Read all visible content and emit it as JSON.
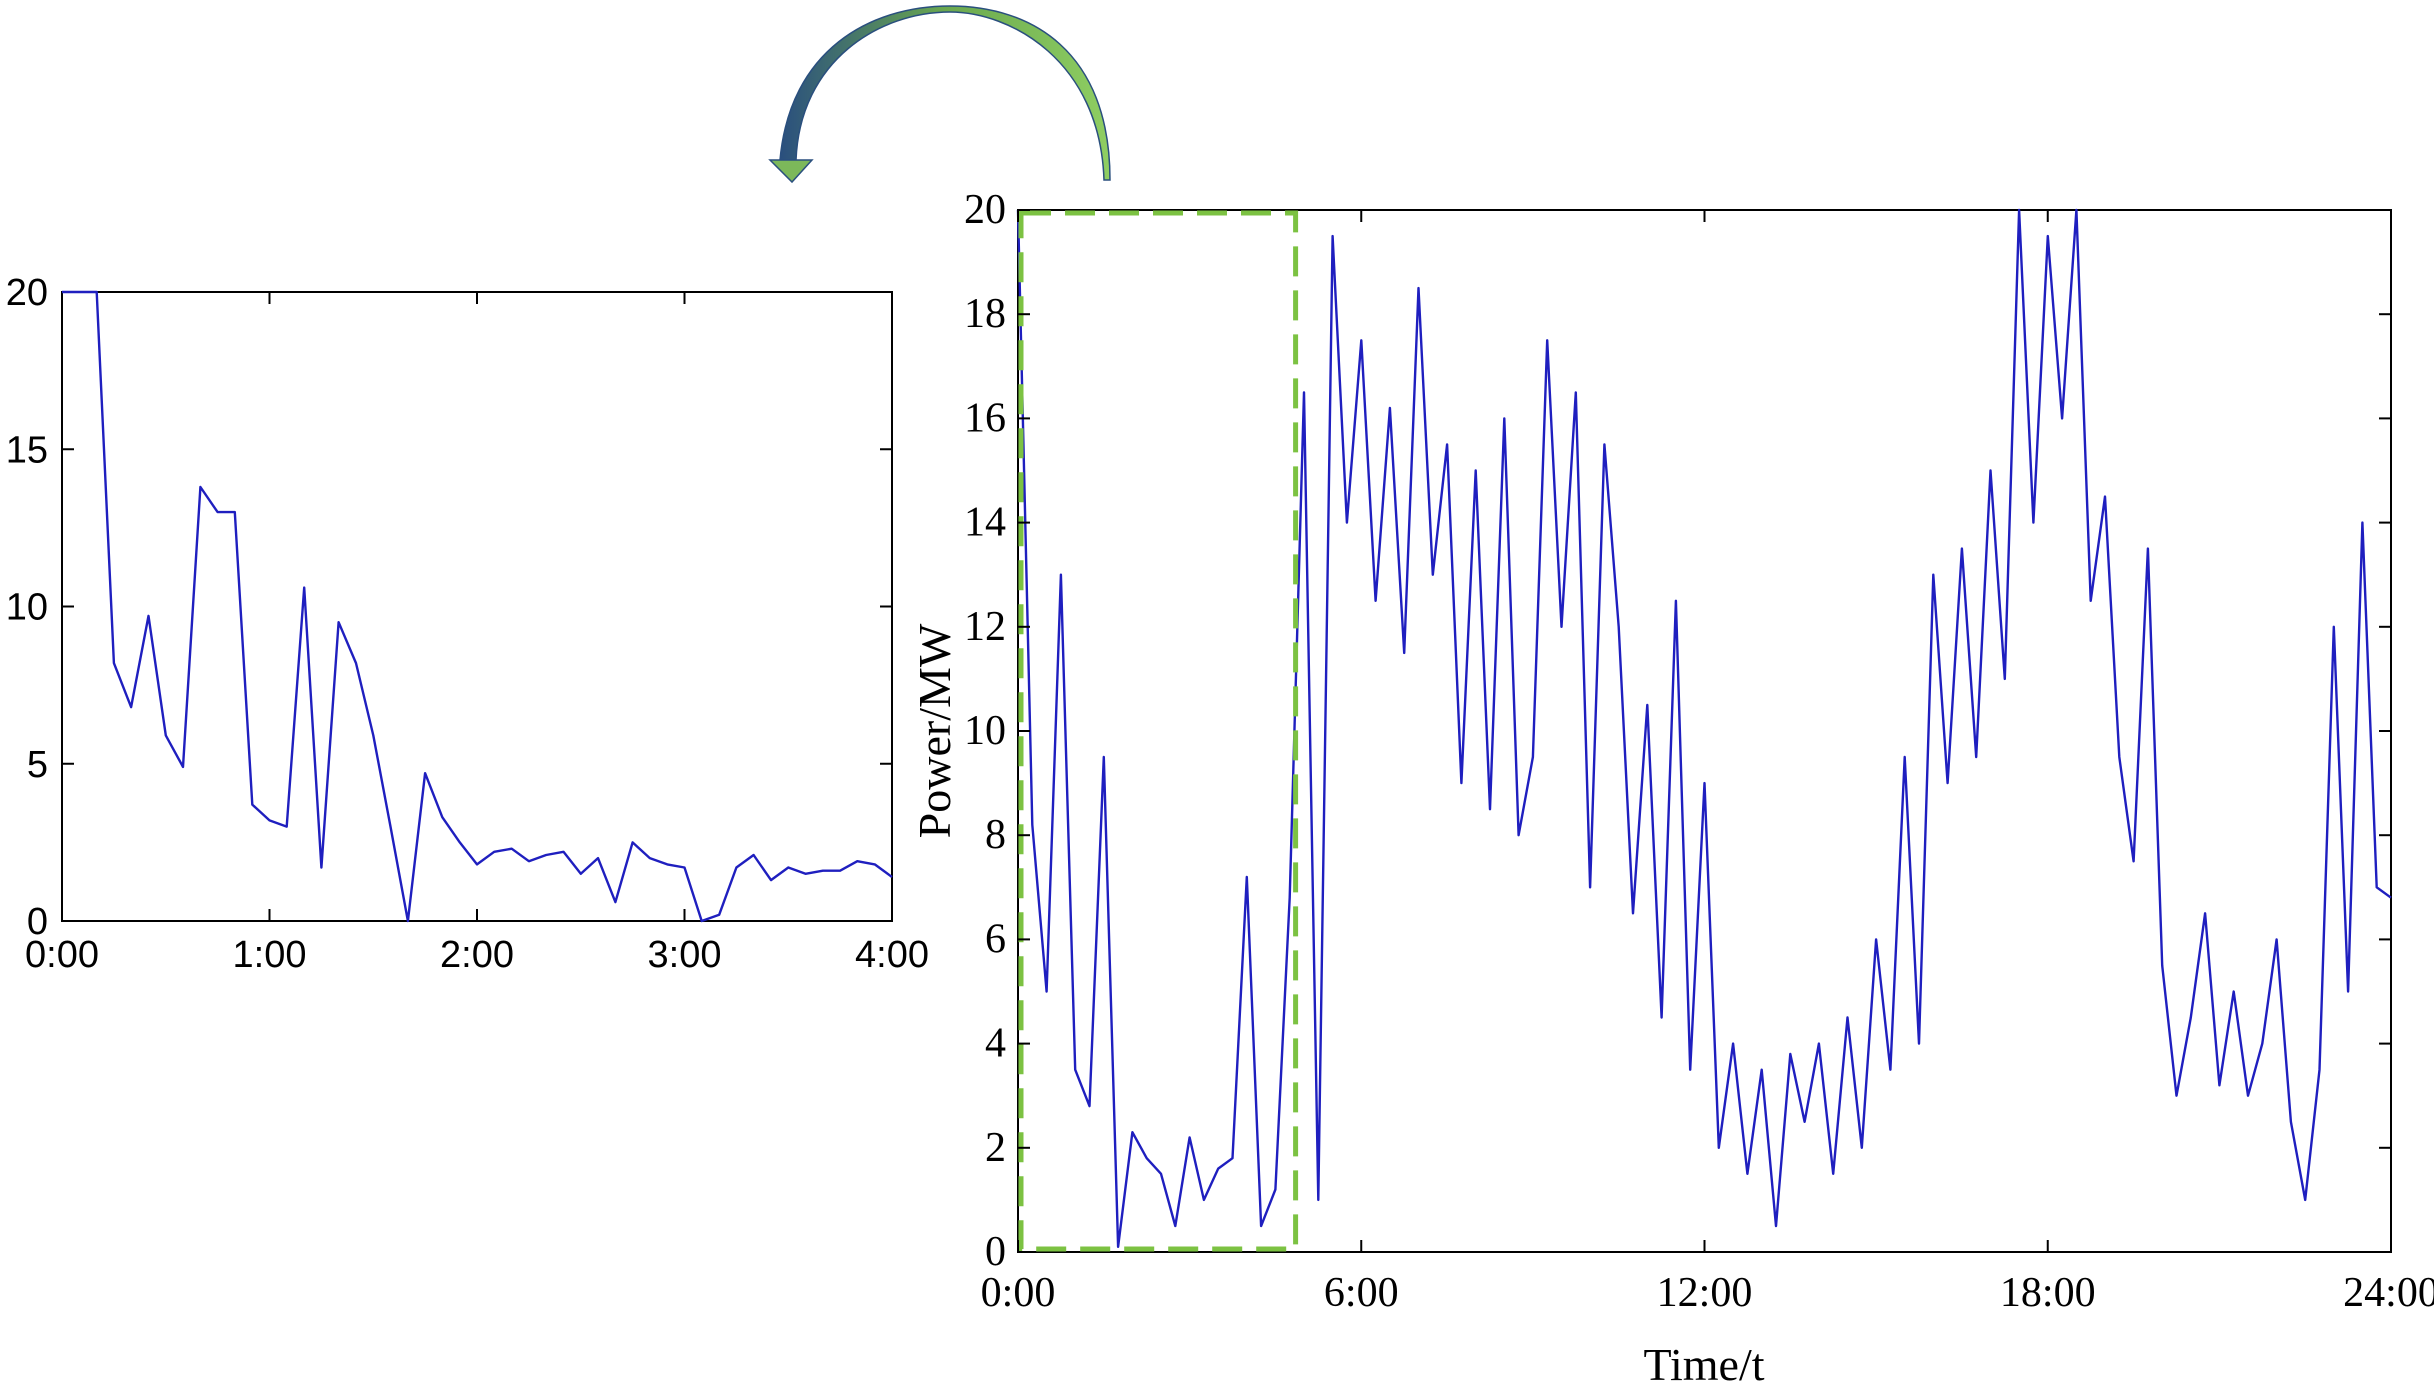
{
  "colors": {
    "line": "#1f1fbf",
    "highlight_box": "#7cc242",
    "arrow_light": "#8fce62",
    "arrow_dark": "#2a4f7e",
    "axis": "#000000"
  },
  "chart_data": [
    {
      "id": "zoom",
      "type": "line",
      "title": "",
      "xlabel": "",
      "ylabel": "",
      "xlim": [
        0,
        4
      ],
      "ylim": [
        0,
        20
      ],
      "xticks": [
        "0:00",
        "1:00",
        "2:00",
        "3:00",
        "4:00"
      ],
      "yticks": [
        "0",
        "5",
        "10",
        "15",
        "20"
      ],
      "grid": false,
      "series": [
        {
          "x": [
            0,
            0.083,
            0.167,
            0.25,
            0.333,
            0.417,
            0.5,
            0.583,
            0.667,
            0.75,
            0.833,
            0.917,
            1.0,
            1.083,
            1.167,
            1.25,
            1.333,
            1.417,
            1.5,
            1.583,
            1.667,
            1.75,
            1.833,
            1.917,
            2.0,
            2.083,
            2.167,
            2.25,
            2.333,
            2.417,
            2.5,
            2.583,
            2.667,
            2.75,
            2.833,
            2.917,
            3.0,
            3.083,
            3.167,
            3.25,
            3.333,
            3.417,
            3.5,
            3.583,
            3.667,
            3.75,
            3.833,
            3.917,
            4.0
          ],
          "y": [
            20,
            20,
            20,
            8.2,
            6.8,
            9.7,
            5.9,
            4.9,
            13.8,
            13.0,
            13.0,
            3.7,
            3.2,
            3.0,
            10.6,
            1.7,
            9.5,
            8.2,
            5.9,
            3.0,
            0,
            4.7,
            3.3,
            2.5,
            1.8,
            2.2,
            2.3,
            1.9,
            2.1,
            2.2,
            1.5,
            2.0,
            0.6,
            2.5,
            2.0,
            1.8,
            1.7,
            0,
            0.2,
            1.7,
            2.1,
            1.3,
            1.7,
            1.5,
            1.6,
            1.6,
            1.9,
            1.8,
            1.4
          ]
        }
      ]
    },
    {
      "id": "main",
      "type": "line",
      "title": "",
      "xlabel": "Time/t",
      "ylabel": "Power/MW",
      "xlim": [
        0,
        24
      ],
      "ylim": [
        0,
        20
      ],
      "xticks": [
        "0:00",
        "6:00",
        "12:00",
        "18:00",
        "24:00"
      ],
      "yticks": [
        "0",
        "2",
        "4",
        "6",
        "8",
        "10",
        "12",
        "14",
        "16",
        "18",
        "20"
      ],
      "grid": false,
      "highlight_range": [
        0,
        4.8
      ],
      "series": [
        {
          "x": [
            0,
            0.25,
            0.5,
            0.75,
            1.0,
            1.25,
            1.5,
            1.75,
            2.0,
            2.25,
            2.5,
            2.75,
            3.0,
            3.25,
            3.5,
            3.75,
            4.0,
            4.25,
            4.5,
            4.75,
            5.0,
            5.25,
            5.5,
            5.75,
            6.0,
            6.25,
            6.5,
            6.75,
            7.0,
            7.25,
            7.5,
            7.75,
            8.0,
            8.25,
            8.5,
            8.75,
            9.0,
            9.25,
            9.5,
            9.75,
            10.0,
            10.25,
            10.5,
            10.75,
            11.0,
            11.25,
            11.5,
            11.75,
            12.0,
            12.25,
            12.5,
            12.75,
            13.0,
            13.25,
            13.5,
            13.75,
            14.0,
            14.25,
            14.5,
            14.75,
            15.0,
            15.25,
            15.5,
            15.75,
            16.0,
            16.25,
            16.5,
            16.75,
            17.0,
            17.25,
            17.5,
            17.75,
            18.0,
            18.25,
            18.5,
            18.75,
            19.0,
            19.25,
            19.5,
            19.75,
            20.0,
            20.25,
            20.5,
            20.75,
            21.0,
            21.25,
            21.5,
            21.75,
            22.0,
            22.25,
            22.5,
            22.75,
            23.0,
            23.25,
            23.5,
            23.75,
            24.0
          ],
          "y": [
            20,
            8.2,
            5.0,
            13.0,
            3.5,
            2.8,
            9.5,
            0.1,
            2.3,
            1.8,
            1.5,
            0.5,
            2.2,
            1.0,
            1.6,
            1.8,
            7.2,
            0.5,
            1.2,
            6.8,
            16.5,
            1.0,
            19.5,
            14.0,
            17.5,
            12.5,
            16.2,
            11.5,
            18.5,
            13.0,
            15.5,
            9.0,
            15.0,
            8.5,
            16.0,
            8.0,
            9.5,
            17.5,
            12.0,
            16.5,
            7.0,
            15.5,
            12.0,
            6.5,
            10.5,
            4.5,
            12.5,
            3.5,
            9.0,
            2.0,
            4.0,
            1.5,
            3.5,
            0.5,
            3.8,
            2.5,
            4.0,
            1.5,
            4.5,
            2.0,
            6.0,
            3.5,
            9.5,
            4.0,
            13.0,
            9.0,
            13.5,
            9.5,
            15.0,
            11.0,
            20.0,
            14.0,
            19.5,
            16.0,
            20.0,
            12.5,
            14.5,
            9.5,
            7.5,
            13.5,
            5.5,
            3.0,
            4.5,
            6.5,
            3.2,
            5.0,
            3.0,
            4.0,
            6.0,
            2.5,
            1.0,
            3.5,
            12.0,
            5.0,
            14.0,
            7.0,
            6.8
          ]
        }
      ]
    }
  ]
}
